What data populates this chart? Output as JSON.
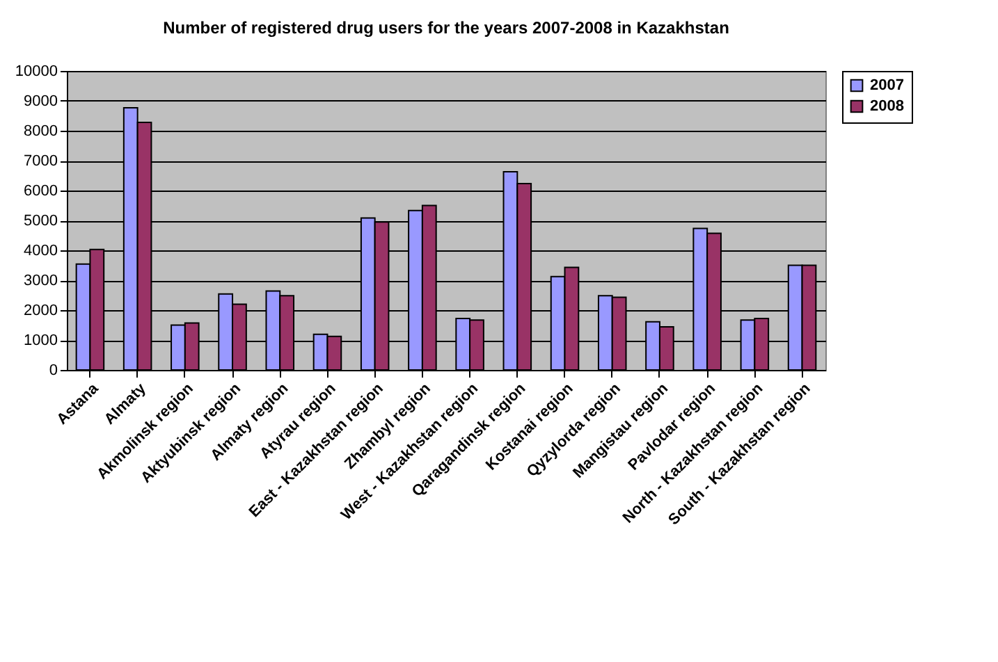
{
  "chart_data": {
    "type": "bar",
    "title": "Number of registered drug users for the years 2007-2008 in Kazakhstan",
    "categories": [
      "Astana",
      "Almaty",
      "Akmolinsk region",
      "Aktyubinsk region",
      "Almaty region",
      "Atyrau region",
      "East - Kazakhstan region",
      "Zhambyl region",
      "West - Kazakhstan region",
      "Qaragandinsk region",
      "Kostanai region",
      "Qyzylorda region",
      "Mangistau region",
      "Pavlodar region",
      "North - Kazakhstan region",
      "South - Kazakhstan region"
    ],
    "series": [
      {
        "name": "2007",
        "color": "#9999ff",
        "values": [
          3540,
          8770,
          1500,
          2540,
          2640,
          1190,
          5080,
          5330,
          1720,
          6630,
          3120,
          2480,
          1610,
          4730,
          1670,
          3500
        ]
      },
      {
        "name": "2008",
        "color": "#993366",
        "values": [
          4030,
          8280,
          1570,
          2200,
          2480,
          1120,
          4950,
          5500,
          1670,
          6230,
          3430,
          2430,
          1440,
          4570,
          1720,
          3500
        ]
      }
    ],
    "ylim": [
      0,
      10000
    ],
    "yticks": [
      0,
      1000,
      2000,
      3000,
      4000,
      5000,
      6000,
      7000,
      8000,
      9000,
      10000
    ],
    "grid": "y",
    "legend": "right"
  }
}
